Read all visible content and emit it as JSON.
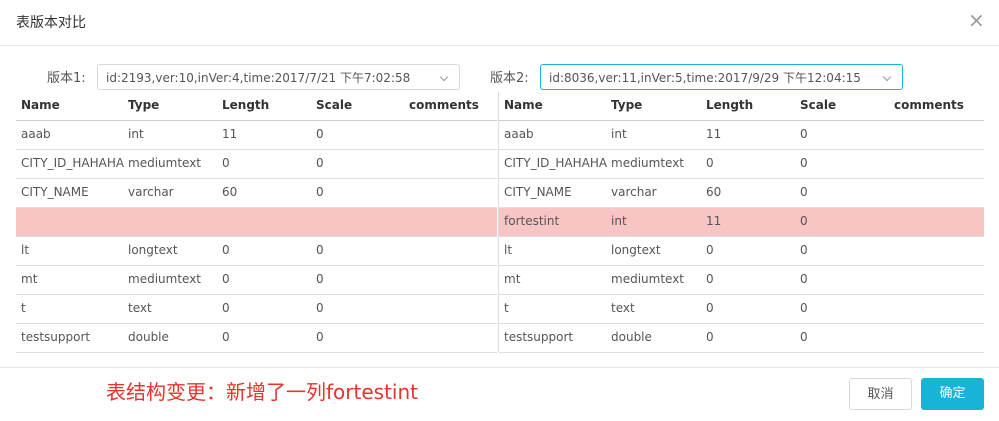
{
  "dialog": {
    "title": "表版本对比",
    "close": "×",
    "left": {
      "label": "版本1:",
      "select": "id:2193,ver:10,inVer:4,time:2017/7/21 下午7:02:58",
      "columns": [
        "Name",
        "Type",
        "Length",
        "Scale",
        "comments"
      ],
      "highlighted_rows": [
        3
      ],
      "rows": [
        [
          "aaab",
          "int",
          "11",
          "0"
        ],
        [
          "CITY_ID_HAHAHA",
          "mediumtext",
          "0",
          "0"
        ],
        [
          "CITY_NAME",
          "varchar",
          "60",
          "0"
        ],
        null,
        [
          "lt",
          "longtext",
          "0",
          "0"
        ],
        [
          "mt",
          "mediumtext",
          "0",
          "0"
        ],
        [
          "t",
          "text",
          "0",
          "0"
        ],
        [
          "testsupport",
          "double",
          "0",
          "0"
        ]
      ]
    },
    "right": {
      "label": "版本2:",
      "select": "id:8036,ver:11,inVer:5,time:2017/9/29 下午12:04:15",
      "columns": [
        "Name",
        "Type",
        "Length",
        "Scale",
        "comments"
      ],
      "highlighted_rows": [
        3
      ],
      "rows": [
        [
          "aaab",
          "int",
          "11",
          "0"
        ],
        [
          "CITY_ID_HAHAHA",
          "mediumtext",
          "0",
          "0"
        ],
        [
          "CITY_NAME",
          "varchar",
          "60",
          "0"
        ],
        [
          "fortestint",
          "int",
          "11",
          "0"
        ],
        [
          "lt",
          "longtext",
          "0",
          "0"
        ],
        [
          "mt",
          "mediumtext",
          "0",
          "0"
        ],
        [
          "t",
          "text",
          "0",
          "0"
        ],
        [
          "testsupport",
          "double",
          "0",
          "0"
        ]
      ]
    },
    "message": "表结构变更：新增了一列fortestint",
    "cancel": "取消",
    "confirm": "确定"
  }
}
